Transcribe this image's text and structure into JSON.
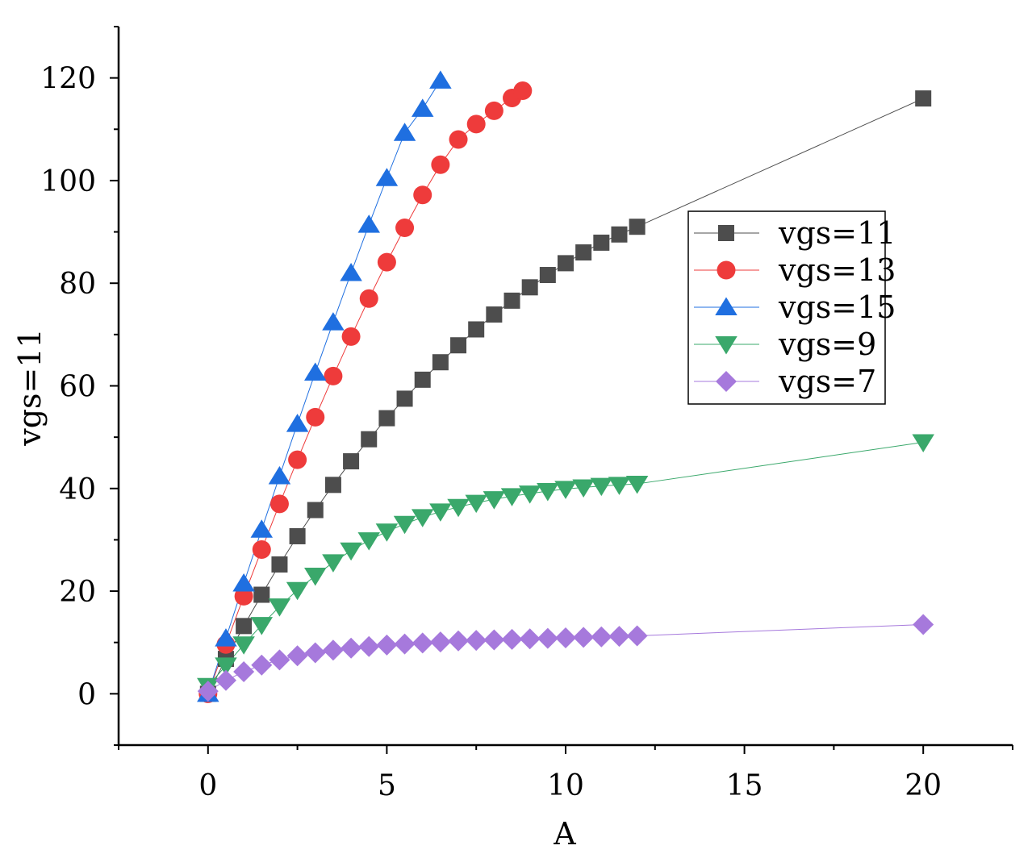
{
  "chart_data": {
    "type": "scatter",
    "xlabel": "A",
    "ylabel": "vgs=11",
    "xlim": [
      -2.5,
      22.5
    ],
    "ylim": [
      -10,
      130
    ],
    "xticks": [
      0,
      5,
      10,
      15,
      20
    ],
    "yticks": [
      0,
      20,
      40,
      60,
      80,
      100,
      120
    ],
    "grid": false,
    "legend_position": "upper-right",
    "series": [
      {
        "name": "vgs=11",
        "color": "#4d4d4d",
        "marker": "square",
        "x": [
          0,
          0.5,
          1,
          1.5,
          2,
          2.5,
          3,
          3.5,
          4,
          4.5,
          5,
          5.5,
          6,
          6.5,
          7,
          7.5,
          8,
          8.5,
          9,
          9.5,
          10,
          10.5,
          11,
          11.5,
          12,
          20
        ],
        "y": [
          0,
          6.8,
          13.2,
          19.3,
          25.2,
          30.7,
          35.8,
          40.7,
          45.3,
          49.6,
          53.7,
          57.5,
          61.2,
          64.6,
          67.9,
          71.0,
          73.9,
          76.6,
          79.2,
          81.6,
          83.9,
          86.0,
          87.9,
          89.5,
          91,
          116
        ]
      },
      {
        "name": "vgs=13",
        "color": "#ee3b3b",
        "marker": "circle",
        "x": [
          0,
          0.5,
          1,
          1.5,
          2,
          2.5,
          3,
          3.5,
          4,
          4.5,
          5,
          5.5,
          6,
          6.5,
          7,
          7.5,
          8,
          8.5,
          8.8
        ],
        "y": [
          0,
          9.6,
          19.0,
          28.1,
          37.0,
          45.6,
          53.9,
          61.9,
          69.6,
          77.0,
          84.1,
          90.8,
          97.2,
          103.1,
          108.0,
          111.0,
          113.6,
          116.1,
          117.5
        ]
      },
      {
        "name": "vgs=15",
        "color": "#1f6fe0",
        "marker": "triangle-up",
        "x": [
          0,
          0.5,
          1,
          1.5,
          2,
          2.5,
          3,
          3.5,
          4,
          4.5,
          5,
          5.5,
          6,
          6.5
        ],
        "y": [
          0,
          10.8,
          21.5,
          32.0,
          42.4,
          52.6,
          62.6,
          72.4,
          82.0,
          91.4,
          100.5,
          109.3,
          114.0,
          119.5
        ]
      },
      {
        "name": "vgs=9",
        "color": "#3aa86b",
        "marker": "triangle-down",
        "x": [
          0,
          0.5,
          1,
          1.5,
          2,
          2.5,
          3,
          3.5,
          4,
          4.5,
          5,
          5.5,
          6,
          6.5,
          7,
          7.5,
          8,
          8.5,
          9,
          9.5,
          10,
          10.5,
          11,
          11.5,
          12,
          20
        ],
        "y": [
          1.5,
          5.5,
          9.6,
          13.4,
          17.0,
          20.2,
          23.0,
          25.6,
          27.9,
          29.9,
          31.6,
          33.1,
          34.4,
          35.5,
          36.4,
          37.2,
          37.9,
          38.5,
          39.0,
          39.5,
          39.9,
          40.2,
          40.5,
          40.7,
          40.9,
          49
        ]
      },
      {
        "name": "vgs=7",
        "color": "#a679dc",
        "marker": "diamond",
        "x": [
          0,
          0.5,
          1,
          1.5,
          2,
          2.5,
          3,
          3.5,
          4,
          4.5,
          5,
          5.5,
          6,
          6.5,
          7,
          7.5,
          8,
          8.5,
          9,
          9.5,
          10,
          10.5,
          11,
          11.5,
          12,
          20
        ],
        "y": [
          0.5,
          2.6,
          4.3,
          5.6,
          6.6,
          7.4,
          8.0,
          8.5,
          8.9,
          9.2,
          9.5,
          9.7,
          9.9,
          10.1,
          10.3,
          10.4,
          10.5,
          10.6,
          10.7,
          10.8,
          10.9,
          11.0,
          11.1,
          11.2,
          11.3,
          13.5
        ]
      }
    ]
  }
}
